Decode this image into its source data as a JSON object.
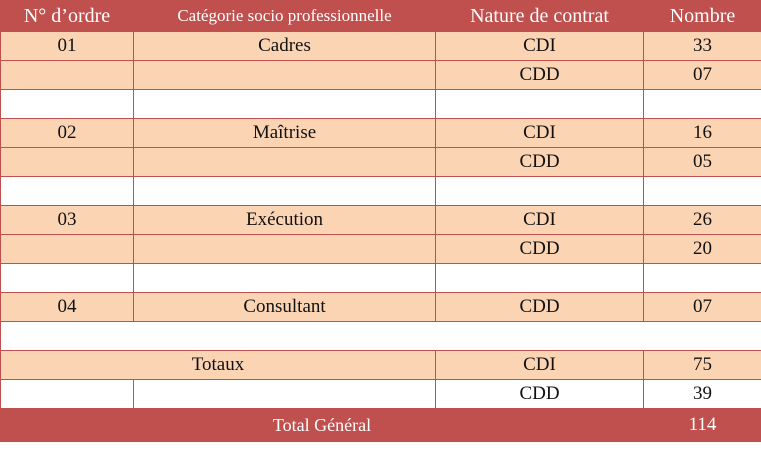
{
  "headers": {
    "order": "N° d’ordre",
    "category": "Catégorie socio professionnelle",
    "contract": "Nature de contrat",
    "count": "Nombre"
  },
  "rows": [
    {
      "order": "01",
      "category": "Cadres",
      "contract": "CDI",
      "count": "33"
    },
    {
      "order": "",
      "category": "",
      "contract": "CDD",
      "count": "07"
    },
    {
      "order": "02",
      "category": "Maîtrise",
      "contract": "CDI",
      "count": "16"
    },
    {
      "order": "",
      "category": "",
      "contract": "CDD",
      "count": "05"
    },
    {
      "order": "03",
      "category": "Exécution",
      "contract": "CDI",
      "count": "26"
    },
    {
      "order": "",
      "category": "",
      "contract": "CDD",
      "count": "20"
    },
    {
      "order": "04",
      "category": "Consultant",
      "contract": "CDD",
      "count": "07"
    }
  ],
  "totals": {
    "label": "Totaux",
    "cdi_label": "CDI",
    "cdi_count": "75",
    "cdd_label": "CDD",
    "cdd_count": "39"
  },
  "grand_total": {
    "label": "Total  Général",
    "value": "114"
  },
  "colors": {
    "header": "#c0504d",
    "band": "#fbd4b4"
  }
}
